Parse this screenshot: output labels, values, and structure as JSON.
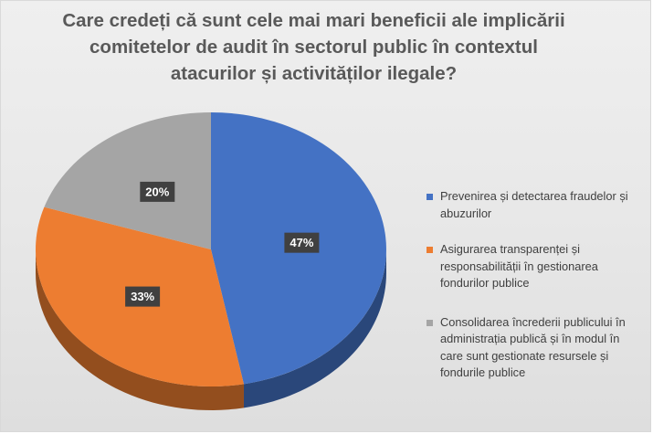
{
  "chart_data": {
    "type": "pie",
    "title": "Care credeți că sunt cele mai mari beneficii ale implicării comitetelor de audit în sectorul public în contextul atacurilor și activităților ilegale?",
    "title_lines": [
      "Care credeți că sunt cele mai mari beneficii ale implicării",
      "comitetelor de audit în sectorul public în contextul",
      "atacurilor și activităților ilegale?"
    ],
    "legend_position": "right",
    "slices": [
      {
        "name": "Prevenirea și detectarea fraudelor și abuzurilor",
        "legend_lines": [
          "Prevenirea și detectarea fraudelor și",
          "abuzurilor"
        ],
        "value": 47,
        "label": "47%",
        "color": "#4472c4"
      },
      {
        "name": "Asigurarea transparenței și responsabilității în gestionarea fondurilor publice",
        "legend_lines": [
          "Asigurarea transparenței și",
          "responsabilității în gestionarea",
          "fondurilor publice"
        ],
        "value": 33,
        "label": "33%",
        "color": "#ed7d31"
      },
      {
        "name": "Consolidarea încrederii publicului în administrația publică și în modul în care sunt gestionate resursele și fondurile publice",
        "legend_lines": [
          "Consolidarea încrederii publicului în",
          "administrația publică și în modul în",
          "care sunt gestionate resursele și",
          "fondurile publice"
        ],
        "value": 20,
        "label": "20%",
        "color": "#a5a5a5"
      }
    ],
    "label_style": {
      "background": "#404040",
      "text_color": "#ffffff"
    }
  }
}
